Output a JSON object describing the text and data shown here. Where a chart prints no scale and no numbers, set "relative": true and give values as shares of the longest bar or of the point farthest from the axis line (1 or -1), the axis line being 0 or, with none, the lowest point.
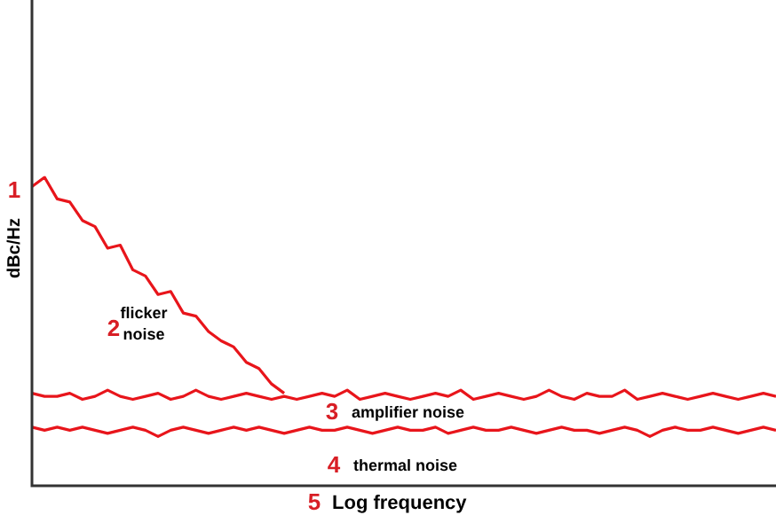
{
  "chart_data": {
    "type": "line",
    "relative": true,
    "xlabel": "Log frequency",
    "ylabel": "dBc/Hz",
    "categories": [
      null,
      null,
      null,
      null,
      null,
      null,
      null,
      null,
      null,
      null,
      null,
      null,
      null,
      null,
      null,
      null,
      null,
      null,
      null,
      null,
      null,
      null,
      null,
      null,
      null,
      null,
      null,
      null,
      null,
      null,
      null,
      null,
      null,
      null,
      null,
      null,
      null,
      null,
      null,
      null,
      null,
      null,
      null,
      null,
      null,
      null,
      null,
      null,
      null,
      null,
      null,
      null,
      null,
      null,
      null,
      null,
      null,
      null,
      null,
      null
    ],
    "series": [
      {
        "color": "#e8151b",
        "values": [
          0.97,
          1.0,
          0.93,
          0.92,
          0.86,
          0.84,
          0.77,
          0.78,
          0.7,
          0.68,
          0.62,
          0.63,
          0.56,
          0.55,
          0.5,
          0.47,
          0.45,
          0.4,
          0.38,
          0.33,
          0.3,
          null,
          null,
          null,
          null,
          null,
          null,
          null,
          null,
          null,
          null,
          null,
          null,
          null,
          null,
          null,
          null,
          null,
          null,
          null,
          null,
          null,
          null,
          null,
          null,
          null,
          null,
          null,
          null,
          null,
          null,
          null,
          null,
          null,
          null,
          null,
          null,
          null,
          null,
          null
        ]
      },
      {
        "color": "#e8151b",
        "values": [
          0.3,
          0.29,
          0.29,
          0.3,
          0.28,
          0.29,
          0.31,
          0.29,
          0.28,
          0.29,
          0.3,
          0.28,
          0.29,
          0.31,
          0.29,
          0.28,
          0.29,
          0.3,
          0.29,
          0.28,
          0.29,
          0.28,
          0.29,
          0.3,
          0.29,
          0.31,
          0.28,
          0.29,
          0.3,
          0.29,
          0.28,
          0.29,
          0.3,
          0.29,
          0.31,
          0.28,
          0.29,
          0.3,
          0.29,
          0.28,
          0.29,
          0.31,
          0.29,
          0.28,
          0.3,
          0.29,
          0.29,
          0.31,
          0.28,
          0.29,
          0.3,
          0.29,
          0.28,
          0.29,
          0.3,
          0.29,
          0.28,
          0.29,
          0.3,
          0.29
        ]
      },
      {
        "color": "#e8151b",
        "values": [
          0.19,
          0.18,
          0.19,
          0.18,
          0.19,
          0.18,
          0.17,
          0.18,
          0.19,
          0.18,
          0.16,
          0.18,
          0.19,
          0.18,
          0.17,
          0.18,
          0.19,
          0.18,
          0.19,
          0.18,
          0.17,
          0.18,
          0.19,
          0.18,
          0.18,
          0.19,
          0.18,
          0.17,
          0.18,
          0.19,
          0.18,
          0.18,
          0.19,
          0.17,
          0.18,
          0.19,
          0.18,
          0.18,
          0.19,
          0.18,
          0.17,
          0.18,
          0.19,
          0.18,
          0.18,
          0.17,
          0.18,
          0.19,
          0.18,
          0.16,
          0.18,
          0.19,
          0.18,
          0.18,
          0.19,
          0.18,
          0.17,
          0.18,
          0.19,
          0.18
        ]
      }
    ],
    "marker": "none",
    "line_style": "solid",
    "legend": false,
    "annotations": [
      "1",
      "2",
      "flicker noise",
      "3",
      "amplifier noise",
      "4",
      "thermal noise",
      "5"
    ]
  }
}
